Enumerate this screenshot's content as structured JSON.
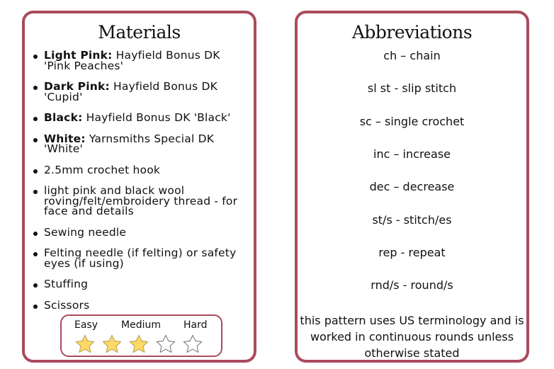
{
  "materials": {
    "title": "Materials",
    "items": [
      {
        "bold": "Light Pink:",
        "text": " Hayfield Bonus DK 'Pink Peaches'"
      },
      {
        "bold": "Dark Pink:",
        "text": " Hayfield Bonus DK 'Cupid'"
      },
      {
        "bold": "Black:",
        "text": " Hayfield Bonus DK 'Black'"
      },
      {
        "bold": "White:",
        "text": " Yarnsmiths Special DK 'White'"
      },
      {
        "bold": "",
        "text": "2.5mm crochet hook"
      },
      {
        "bold": "",
        "text": "light pink and black wool roving/felt/embroidery thread - for face and details"
      },
      {
        "bold": "",
        "text": "Sewing needle"
      },
      {
        "bold": "",
        "text": "Felting needle (if felting) or safety eyes (if using)"
      },
      {
        "bold": "",
        "text": "Stuffing"
      },
      {
        "bold": "",
        "text": "Scissors"
      }
    ]
  },
  "difficulty": {
    "labels": [
      "Easy",
      "Medium",
      "Hard"
    ],
    "rating": 3,
    "max": 5,
    "star_color": "#ffd966"
  },
  "abbreviations": {
    "title": "Abbreviations",
    "items": [
      "ch – chain",
      "sl st - slip stitch",
      "sc – single crochet",
      "inc – increase",
      "dec – decrease",
      "st/s - stitch/es",
      "rep - repeat",
      "rnd/s - round/s"
    ],
    "note": "this pattern uses US terminology and is worked in continuous rounds unless otherwise stated"
  },
  "colors": {
    "border": "#a94b5c"
  }
}
